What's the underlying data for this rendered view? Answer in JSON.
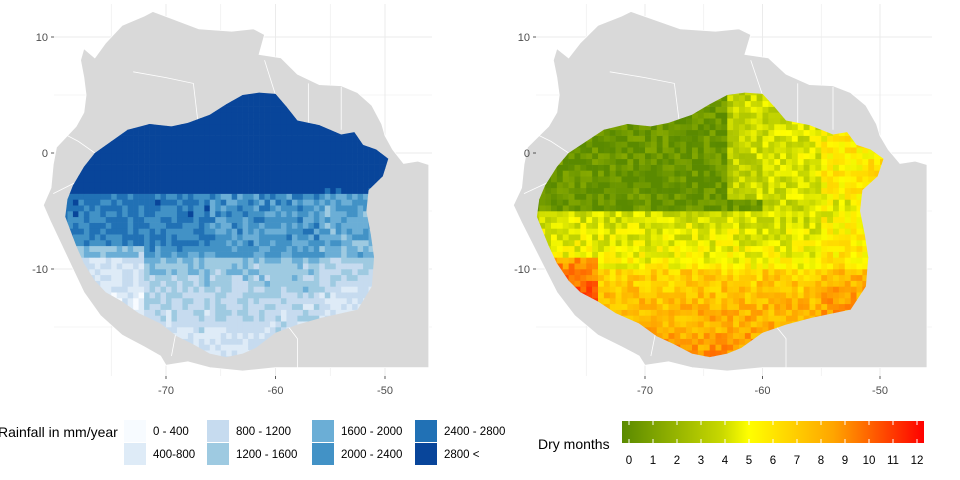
{
  "chart_data": [
    {
      "type": "heatmap",
      "title": "",
      "xlabel": "",
      "ylabel": "",
      "xlim": [
        -78,
        -46
      ],
      "ylim": [
        -19,
        12
      ],
      "x_ticks": [
        -70,
        -60,
        -50
      ],
      "y_ticks": [
        10,
        0,
        -10
      ],
      "x_tick_labels": [
        "-70",
        "-60",
        "-50"
      ],
      "y_tick_labels": [
        "10",
        "0",
        "-10"
      ],
      "grid": true,
      "legend": {
        "title": "Rainfall in mm/year",
        "placement": "bottom",
        "entries": [
          {
            "label": "0 - 400",
            "color": "#F7FBFF"
          },
          {
            "label": "400-800",
            "color": "#DEEBF7"
          },
          {
            "label": "800 - 1200",
            "color": "#C6DBEF"
          },
          {
            "label": "1200 - 1600",
            "color": "#9ECAE1"
          },
          {
            "label": "1600 - 2000",
            "color": "#6BAED6"
          },
          {
            "label": "2000 - 2400",
            "color": "#4292C6"
          },
          {
            "label": "2400 - 2800",
            "color": "#2171B5"
          },
          {
            "label": "2800 <",
            "color": "#08459A"
          }
        ]
      }
    },
    {
      "type": "heatmap",
      "title": "",
      "xlabel": "",
      "ylabel": "",
      "xlim": [
        -78,
        -46
      ],
      "ylim": [
        -19,
        12
      ],
      "x_ticks": [
        -70,
        -60,
        -50
      ],
      "y_ticks": [
        10,
        0,
        -10
      ],
      "x_tick_labels": [
        "-70",
        "-60",
        "-50"
      ],
      "y_tick_labels": [
        "10",
        "0",
        "-10"
      ],
      "grid": true,
      "legend": {
        "title": "Dry months",
        "placement": "bottom",
        "type": "colorbar",
        "range": [
          0,
          12
        ],
        "ticks": [
          "0",
          "1",
          "2",
          "3",
          "4",
          "5",
          "6",
          "7",
          "8",
          "9",
          "10",
          "11",
          "12"
        ],
        "colors": [
          "#5A8A00",
          "#E8E800",
          "#FFFF00",
          "#FFA500",
          "#FF0000"
        ]
      }
    }
  ],
  "colors": {
    "panel_background": "#FFFFFF",
    "gridline": "#EBEBEB",
    "land": "#D9D9D9",
    "land_border": "#FFFFFF"
  }
}
